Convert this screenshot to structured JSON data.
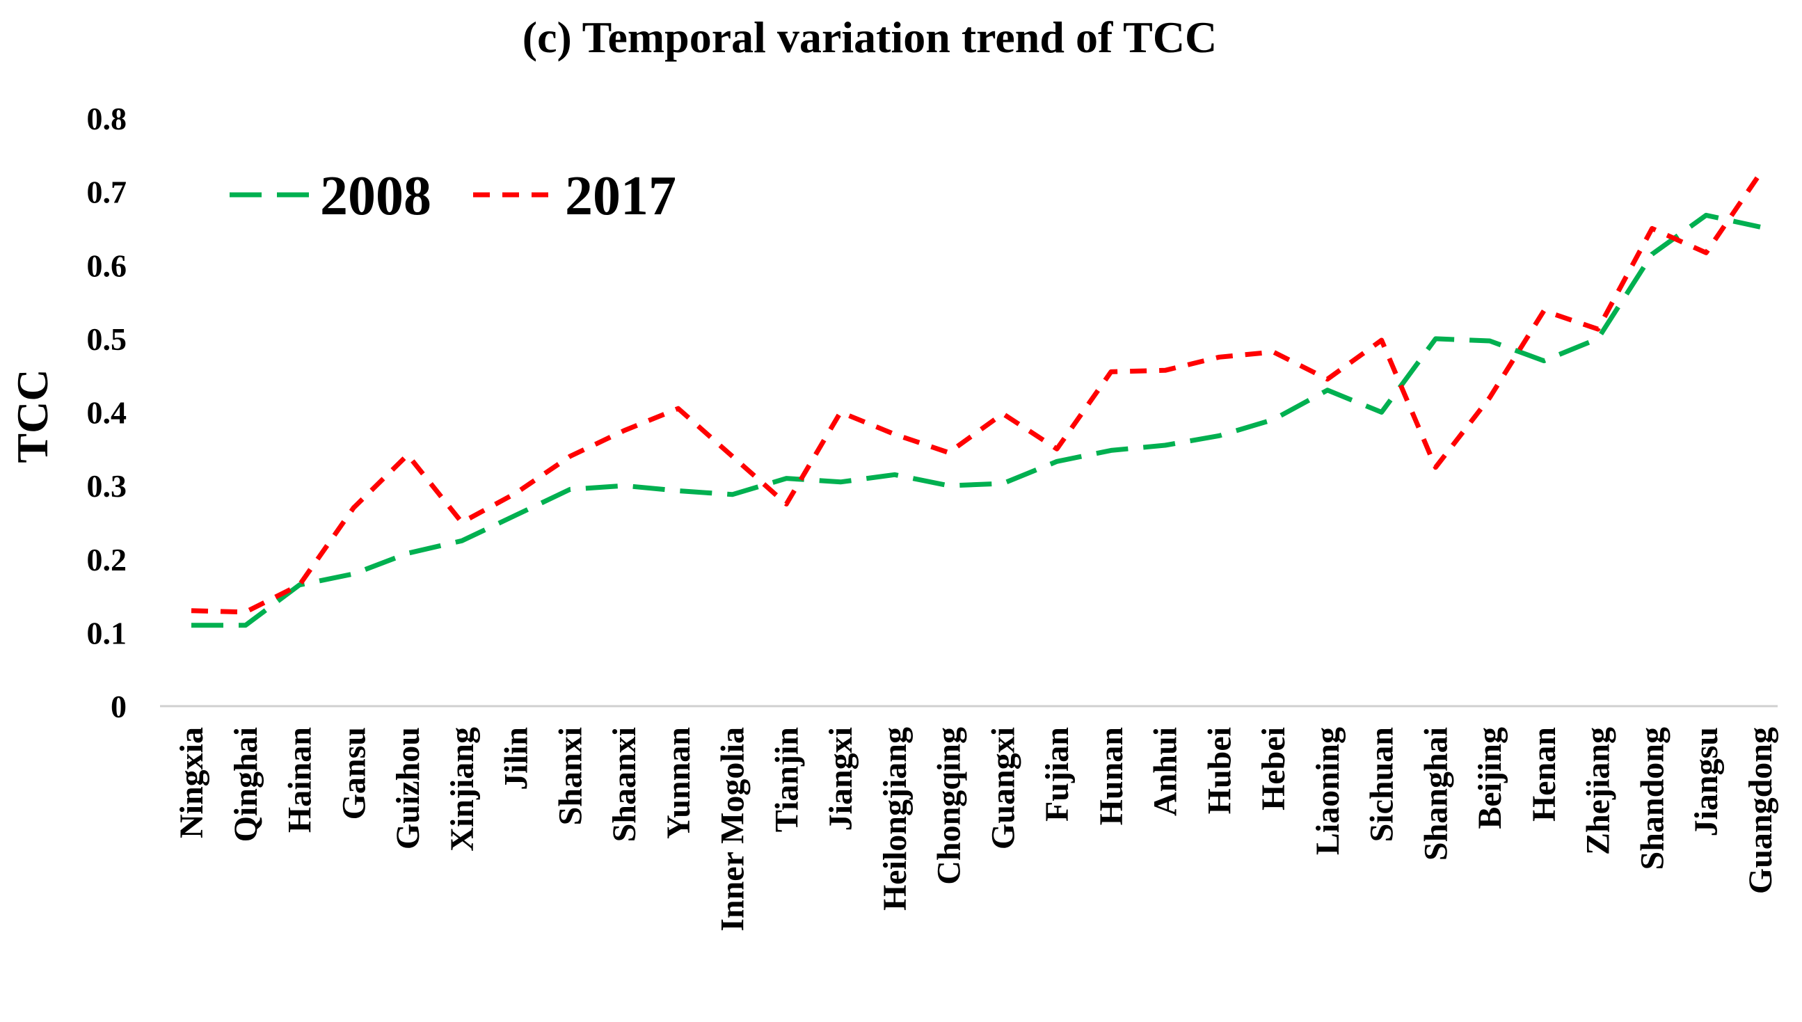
{
  "chart_data": {
    "type": "line",
    "title": "(c)  Temporal variation trend of TCC",
    "xlabel": "",
    "ylabel": "TCC",
    "ylim": [
      0,
      0.8
    ],
    "yticks": [
      0,
      0.1,
      0.2,
      0.3,
      0.4,
      0.5,
      0.6,
      0.7,
      0.8
    ],
    "ytick_labels": [
      "0",
      "0.1",
      "0.2",
      "0.3",
      "0.4",
      "0.5",
      "0.6",
      "0.7",
      "0.8"
    ],
    "grid": false,
    "legend_position": "top-left",
    "categories": [
      "Ningxia",
      "Qinghai",
      "Hainan",
      "Gansu",
      "Guizhou",
      "Xinjiang",
      "Jilin",
      "Shanxi",
      "Shaanxi",
      "Yunnan",
      "Inner Mogolia",
      "Tianjin",
      "Jiangxi",
      "Heilongjiang",
      "Chongqing",
      "Guangxi",
      "Fujian",
      "Hunan",
      "Anhui",
      "Hubei",
      "Hebei",
      "Liaoning",
      "Sichuan",
      "Shanghai",
      "Beijing",
      "Henan",
      "Zhejiang",
      "Shandong",
      "Jiangsu",
      "Guangdong"
    ],
    "series": [
      {
        "name": "2008",
        "color": "#00B050",
        "dash": "long-dash",
        "values": [
          0.11,
          0.11,
          0.165,
          0.18,
          0.208,
          0.225,
          0.26,
          0.295,
          0.3,
          0.293,
          0.288,
          0.31,
          0.305,
          0.315,
          0.3,
          0.303,
          0.333,
          0.348,
          0.355,
          0.368,
          0.39,
          0.43,
          0.4,
          0.5,
          0.497,
          0.47,
          0.5,
          0.615,
          0.668,
          0.652
        ]
      },
      {
        "name": "2017",
        "color": "#FF0000",
        "dash": "short-dash",
        "values": [
          0.13,
          0.128,
          0.165,
          0.27,
          0.342,
          0.25,
          0.29,
          0.34,
          0.375,
          0.405,
          0.34,
          0.275,
          0.4,
          0.37,
          0.345,
          0.398,
          0.35,
          0.455,
          0.457,
          0.475,
          0.482,
          0.445,
          0.498,
          0.325,
          0.42,
          0.538,
          0.513,
          0.65,
          0.617,
          0.725
        ]
      }
    ]
  }
}
